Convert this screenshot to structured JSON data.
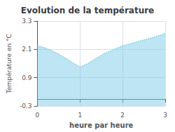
{
  "chart_data": {
    "type": "area",
    "title": "Evolution de la température",
    "xlabel": "heure par heure",
    "ylabel": "Température en °C",
    "x": [
      0,
      0.15,
      0.3,
      0.5,
      0.7,
      1.0,
      1.2,
      1.4,
      1.6,
      1.8,
      2.0,
      2.2,
      2.4,
      2.6,
      2.8,
      3.0
    ],
    "values": [
      2.25,
      2.18,
      2.08,
      1.9,
      1.68,
      1.35,
      1.52,
      1.75,
      1.95,
      2.1,
      2.25,
      2.35,
      2.45,
      2.55,
      2.65,
      2.78
    ],
    "color": "#7ecce8",
    "line_style": "dotted",
    "xlim": [
      0,
      3
    ],
    "xticks": [
      0,
      1,
      2,
      3
    ],
    "ylim": [
      -0.3,
      3.3
    ],
    "yticks": [
      -0.3,
      0.9,
      2.1,
      3.3
    ],
    "grid": true
  }
}
